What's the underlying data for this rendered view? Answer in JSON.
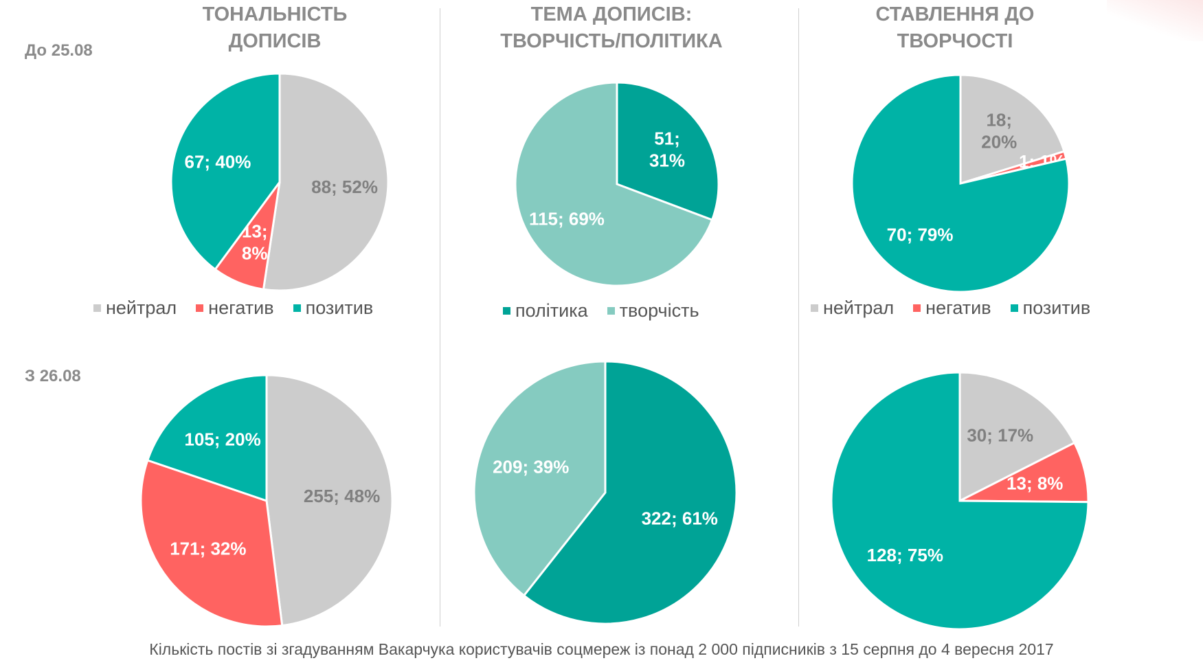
{
  "row_labels": {
    "before": "До 25.08",
    "after": "З 26.08"
  },
  "column_titles": [
    [
      "ТОНАЛЬНІСТЬ",
      "ДОПИСІВ"
    ],
    [
      "ТЕМА ДОПИСІВ:",
      "ТВОРЧІСТЬ/ПОЛІТИКА"
    ],
    [
      "СТАВЛЕННЯ ДО",
      "ТВОРЧОСТІ"
    ]
  ],
  "legends": [
    [
      {
        "label": "нейтрал",
        "color": "#cccccc"
      },
      {
        "label": "негатив",
        "color": "#ff6361"
      },
      {
        "label": "позитив",
        "color": "#00b3a6"
      }
    ],
    [
      {
        "label": "політика",
        "color": "#00a396"
      },
      {
        "label": "творчість",
        "color": "#85cbc0"
      }
    ],
    [
      {
        "label": "нейтрал",
        "color": "#cccccc"
      },
      {
        "label": "негатив",
        "color": "#ff6361"
      },
      {
        "label": "позитив",
        "color": "#00b3a6"
      }
    ]
  ],
  "caption": "Кількість постів зі згадуванням Вакарчука користувачів соцмереж  із понад 2 000 підписників з 15 серпня до 4 вересня  2017",
  "chart_data": [
    {
      "type": "pie",
      "title": "ТОНАЛЬНІСТЬ ДОПИСІВ",
      "period": "До 25.08",
      "slices": [
        {
          "name": "нейтрал",
          "value": 88,
          "percent": 52,
          "color": "#cccccc",
          "label_color": "#808080",
          "label_lines": [
            "88; 52%"
          ]
        },
        {
          "name": "негатив",
          "value": 13,
          "percent": 8,
          "color": "#ff6361",
          "label_color": "#ffffff",
          "label_lines": [
            "13;",
            "8%"
          ]
        },
        {
          "name": "позитив",
          "value": 67,
          "percent": 40,
          "color": "#00b3a6",
          "label_color": "#ffffff",
          "label_lines": [
            "67; 40%"
          ]
        }
      ]
    },
    {
      "type": "pie",
      "title": "ТЕМА ДОПИСІВ: ТВОРЧІСТЬ/ПОЛІТИКА",
      "period": "До 25.08",
      "slices": [
        {
          "name": "політика",
          "value": 51,
          "percent": 31,
          "color": "#00a396",
          "label_color": "#ffffff",
          "label_lines": [
            "51;",
            "31%"
          ]
        },
        {
          "name": "творчість",
          "value": 115,
          "percent": 69,
          "color": "#85cbc0",
          "label_color": "#ffffff",
          "label_lines": [
            "115; 69%"
          ]
        }
      ]
    },
    {
      "type": "pie",
      "title": "СТАВЛЕННЯ ДО ТВОРЧОСТІ",
      "period": "До 25.08",
      "slices": [
        {
          "name": "нейтрал",
          "value": 18,
          "percent": 20,
          "color": "#cccccc",
          "label_color": "#808080",
          "label_lines": [
            "18;",
            "20%"
          ]
        },
        {
          "name": "негатив",
          "value": 1,
          "percent": 1,
          "color": "#ff6361",
          "label_color": "#ffffff",
          "label_lines": [
            "1; 1%"
          ]
        },
        {
          "name": "позитив",
          "value": 70,
          "percent": 79,
          "color": "#00b3a6",
          "label_color": "#ffffff",
          "label_lines": [
            "70; 79%"
          ]
        }
      ]
    },
    {
      "type": "pie",
      "title": "ТОНАЛЬНІСТЬ ДОПИСІВ",
      "period": "З 26.08",
      "slices": [
        {
          "name": "нейтрал",
          "value": 255,
          "percent": 48,
          "color": "#cccccc",
          "label_color": "#808080",
          "label_lines": [
            "255; 48%"
          ]
        },
        {
          "name": "негатив",
          "value": 171,
          "percent": 32,
          "color": "#ff6361",
          "label_color": "#ffffff",
          "label_lines": [
            "171; 32%"
          ]
        },
        {
          "name": "позитив",
          "value": 105,
          "percent": 20,
          "color": "#00b3a6",
          "label_color": "#ffffff",
          "label_lines": [
            "105; 20%"
          ]
        }
      ]
    },
    {
      "type": "pie",
      "title": "ТЕМА ДОПИСІВ: ТВОРЧІСТЬ/ПОЛІТИКА",
      "period": "З 26.08",
      "slices": [
        {
          "name": "політика",
          "value": 322,
          "percent": 61,
          "color": "#00a396",
          "label_color": "#ffffff",
          "label_lines": [
            "322; 61%"
          ]
        },
        {
          "name": "творчість",
          "value": 209,
          "percent": 39,
          "color": "#85cbc0",
          "label_color": "#ffffff",
          "label_lines": [
            "209; 39%"
          ]
        }
      ]
    },
    {
      "type": "pie",
      "title": "СТАВЛЕННЯ ДО ТВОРЧОСТІ",
      "period": "З 26.08",
      "slices": [
        {
          "name": "нейтрал",
          "value": 30,
          "percent": 17,
          "color": "#cccccc",
          "label_color": "#808080",
          "label_lines": [
            "30; 17%"
          ]
        },
        {
          "name": "негатив",
          "value": 13,
          "percent": 8,
          "color": "#ff6361",
          "label_color": "#ffffff",
          "label_lines": [
            "13; 8%"
          ]
        },
        {
          "name": "позитив",
          "value": 128,
          "percent": 75,
          "color": "#00b3a6",
          "label_color": "#ffffff",
          "label_lines": [
            "128; 75%"
          ]
        }
      ]
    }
  ]
}
